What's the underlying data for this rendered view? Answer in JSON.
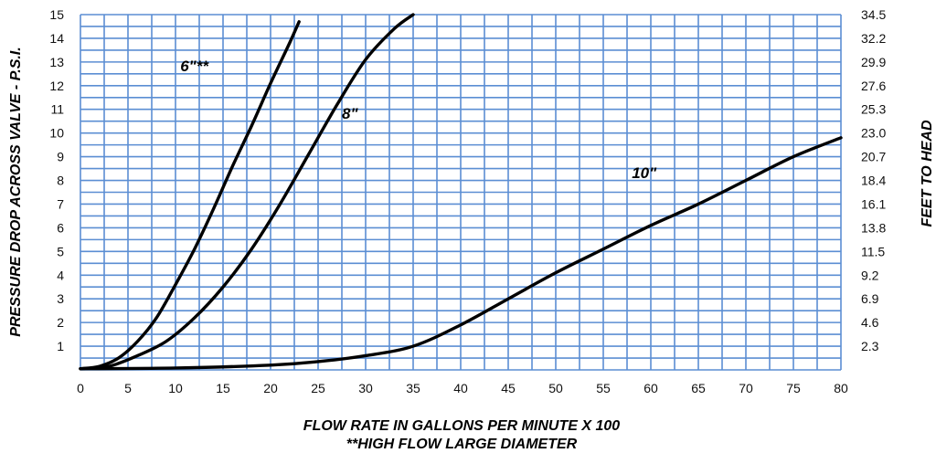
{
  "chart_data": {
    "type": "line",
    "xlabel": "FLOW RATE IN GALLONS PER MINUTE X 100",
    "footnote": "**HIGH FLOW LARGE DIAMETER",
    "ylabel": "PRESSURE DROP ACROSS VALVE - P.S.I.",
    "y2label": "FEET TO HEAD",
    "xlim": [
      0,
      80
    ],
    "ylim": [
      0,
      15
    ],
    "grid": true,
    "x_ticks": [
      "0",
      "5",
      "10",
      "15",
      "20",
      "25",
      "30",
      "35",
      "40",
      "45",
      "50",
      "55",
      "60",
      "65",
      "70",
      "75",
      "80"
    ],
    "x_tick_values": [
      0,
      5,
      10,
      15,
      20,
      25,
      30,
      35,
      40,
      45,
      50,
      55,
      60,
      65,
      70,
      75,
      80
    ],
    "y_ticks": [
      "1",
      "2",
      "3",
      "4",
      "5",
      "6",
      "7",
      "8",
      "9",
      "10",
      "11",
      "12",
      "13",
      "14",
      "15"
    ],
    "y_tick_values": [
      1,
      2,
      3,
      4,
      5,
      6,
      7,
      8,
      9,
      10,
      11,
      12,
      13,
      14,
      15
    ],
    "y2_ticks": [
      "2.3",
      "4.6",
      "6.9",
      "9.2",
      "11.5",
      "13.8",
      "16.1",
      "18.4",
      "20.7",
      "23.0",
      "25.3",
      "27.6",
      "29.9",
      "32.2",
      "34.5"
    ],
    "y2_tick_values": [
      1,
      2,
      3,
      4,
      5,
      6,
      7,
      8,
      9,
      10,
      11,
      12,
      13,
      14,
      15
    ],
    "series": [
      {
        "name": "6\"**",
        "label_at": [
          10.5,
          12.6
        ],
        "points": [
          [
            0,
            0.05
          ],
          [
            2,
            0.15
          ],
          [
            4,
            0.5
          ],
          [
            6,
            1.2
          ],
          [
            8,
            2.2
          ],
          [
            10,
            3.6
          ],
          [
            12,
            5.1
          ],
          [
            14,
            6.8
          ],
          [
            16,
            8.6
          ],
          [
            18,
            10.3
          ],
          [
            20,
            12.1
          ],
          [
            22,
            13.8
          ],
          [
            23,
            14.7
          ]
        ]
      },
      {
        "name": "8\"",
        "label_at": [
          27.5,
          10.6
        ],
        "points": [
          [
            0,
            0.05
          ],
          [
            3,
            0.15
          ],
          [
            6,
            0.6
          ],
          [
            9,
            1.2
          ],
          [
            12,
            2.2
          ],
          [
            15,
            3.5
          ],
          [
            18,
            5.1
          ],
          [
            21,
            7.0
          ],
          [
            24,
            9.1
          ],
          [
            27,
            11.2
          ],
          [
            30,
            13.1
          ],
          [
            33,
            14.4
          ],
          [
            35,
            15.0
          ]
        ]
      },
      {
        "name": "10\"",
        "label_at": [
          58,
          8.1
        ],
        "points": [
          [
            0,
            0.05
          ],
          [
            10,
            0.08
          ],
          [
            20,
            0.2
          ],
          [
            25,
            0.35
          ],
          [
            30,
            0.6
          ],
          [
            35,
            1.0
          ],
          [
            40,
            1.9
          ],
          [
            45,
            3.0
          ],
          [
            50,
            4.1
          ],
          [
            55,
            5.1
          ],
          [
            60,
            6.1
          ],
          [
            65,
            7.0
          ],
          [
            70,
            8.0
          ],
          [
            75,
            9.0
          ],
          [
            80,
            9.8
          ]
        ]
      }
    ]
  }
}
